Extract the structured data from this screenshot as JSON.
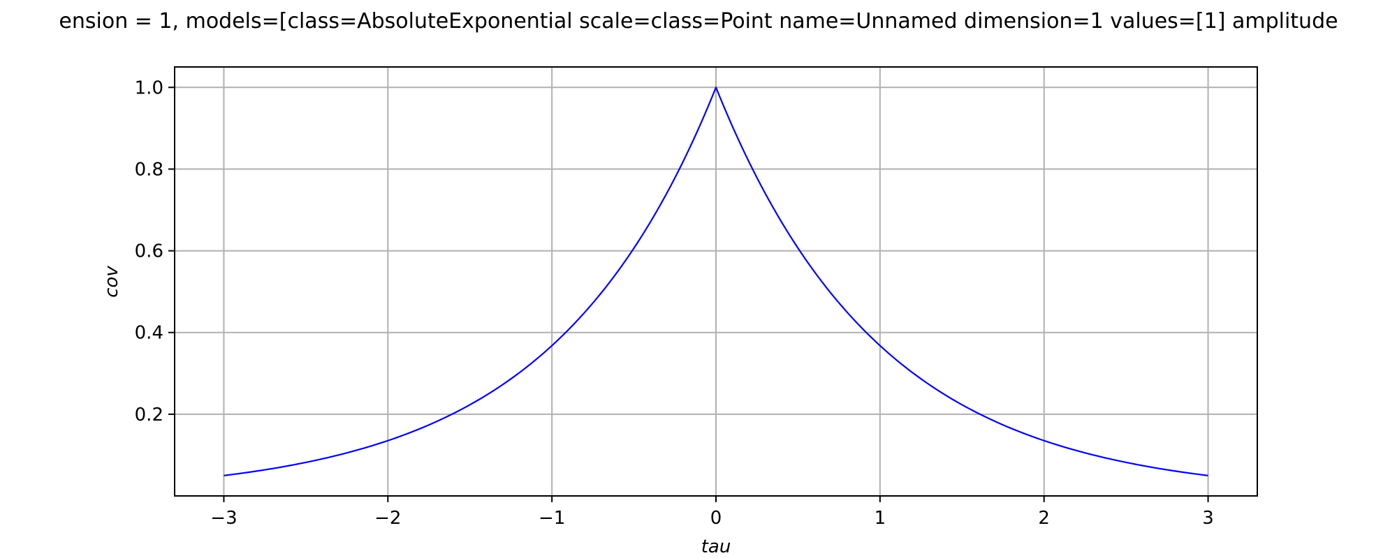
{
  "chart_data": {
    "type": "line",
    "title": "ension = 1, models=[class=AbsoluteExponential scale=class=Point name=Unnamed dimension=1 values=[1] amplitude",
    "xlabel": "tau",
    "ylabel": "cov",
    "xlim": [
      -3.3,
      3.3
    ],
    "ylim": [
      0.0,
      1.05
    ],
    "x_ticks": [
      -3,
      -2,
      -1,
      0,
      1,
      2,
      3
    ],
    "x_tick_labels": [
      "−3",
      "−2",
      "−1",
      "0",
      "1",
      "2",
      "3"
    ],
    "y_ticks": [
      0.2,
      0.4,
      0.6,
      0.8,
      1.0
    ],
    "y_tick_labels": [
      "0.2",
      "0.4",
      "0.6",
      "0.8",
      "1.0"
    ],
    "grid": true,
    "series": [
      {
        "color": "#0000ff",
        "x": [
          -3.0,
          -2.75,
          -2.5,
          -2.25,
          -2.0,
          -1.75,
          -1.5,
          -1.25,
          -1.0,
          -0.75,
          -0.5,
          -0.25,
          0.0,
          0.25,
          0.5,
          0.75,
          1.0,
          1.25,
          1.5,
          1.75,
          2.0,
          2.25,
          2.5,
          2.75,
          3.0
        ],
        "y": [
          0.0498,
          0.0639,
          0.0821,
          0.1054,
          0.1353,
          0.1738,
          0.2231,
          0.2865,
          0.3679,
          0.4724,
          0.6065,
          0.7788,
          1.0,
          0.7788,
          0.6065,
          0.4724,
          0.3679,
          0.2865,
          0.2231,
          0.1738,
          0.1353,
          0.1054,
          0.0821,
          0.0639,
          0.0498
        ]
      }
    ]
  },
  "colors": {
    "line": "#0000ff",
    "grid": "#b0b0b0",
    "frame": "#000000"
  }
}
